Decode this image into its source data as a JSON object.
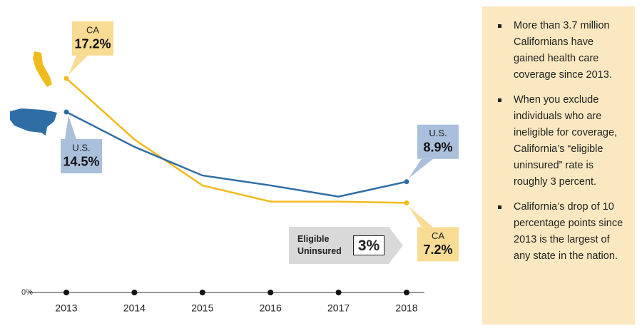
{
  "chart_data": {
    "type": "line",
    "x": [
      2013,
      2014,
      2015,
      2016,
      2017,
      2018
    ],
    "xlim": [
      2013,
      2018
    ],
    "xticks": [
      2013,
      2014,
      2015,
      2016,
      2017,
      2018
    ],
    "ylim": [
      0,
      20
    ],
    "yticks": [
      {
        "value": 0,
        "label": "0%"
      }
    ],
    "series": [
      {
        "name": "CA",
        "color": "#f0bb1c",
        "values": [
          17.2,
          12.3,
          8.6,
          7.3,
          7.3,
          7.2
        ],
        "value_labels": [
          "17.2%",
          null,
          null,
          null,
          null,
          "7.2%"
        ]
      },
      {
        "name": "U.S.",
        "color": "#2f6ea5",
        "values": [
          14.5,
          11.7,
          9.4,
          8.6,
          7.7,
          8.9
        ],
        "value_labels": [
          "14.5%",
          null,
          null,
          null,
          null,
          "8.9%"
        ]
      }
    ],
    "annotation": {
      "label": "Eligible Uninsured",
      "value": "3%"
    }
  },
  "sidebar": {
    "bullets": [
      "More than 3.7 million Californians have gained health care coverage since 2013.",
      "When you exclude individuals who are ineligible for coverage, California’s “eligible uninsured” rate is roughly 3 percent.",
      "California’s drop of 10 percentage points since 2013 is the largest of any state in the nation."
    ]
  }
}
